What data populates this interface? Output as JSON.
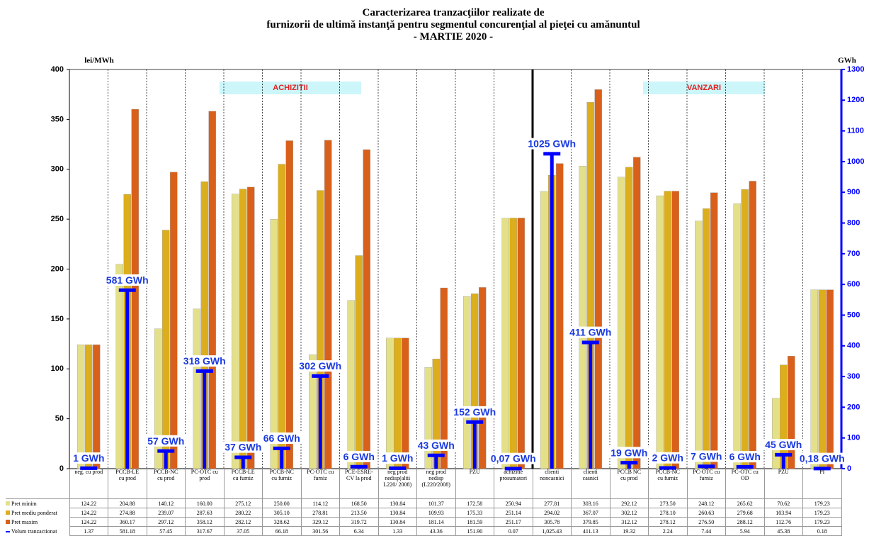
{
  "chart_data": {
    "type": "bar",
    "title": "Caracterizarea tranzacţiilor realizate de\nfurnizorii de ultimă instanţă pentru segmentul concurenţial al pieţei cu amănuntul\n- MARTIE 2020 -",
    "y_label": "lei/MWh",
    "y2_label": "GWh",
    "annotations": [
      "ACHIZITII",
      "VANZARI"
    ],
    "categories": [
      "neg. cu prod",
      "PCCB-LE\ncu prod",
      "PCCB-NC\ncu prod",
      "PC-OTC cu\nprod",
      "PCCB-LE\ncu furniz",
      "PCCB-NC\ncu furniz",
      "PC-OTC cu\nfurniz",
      "PCE-ESRE-\nCV la prod",
      "neg prod\nnedisp(altii\nL220/ 2008)",
      "neg prod\nnedisp\n(L220/2008)",
      "PZU",
      "achizitie\nprosumatori",
      "clienti\nnoncasnici",
      "clienti\ncasnici",
      "PCCB NC\ncu prod",
      "PCCB-NC\ncu furniz",
      "PC-OTC cu\nfurniz",
      "PC-OTC cu\nOD",
      "PZU",
      "PI"
    ],
    "series": [
      {
        "name": "Pret minim",
        "color": "#e4e08a",
        "values": [
          124.22,
          204.88,
          140.12,
          160.0,
          275.12,
          250.0,
          114.12,
          168.5,
          130.84,
          101.37,
          172.58,
          250.94,
          277.81,
          303.16,
          292.12,
          273.5,
          248.12,
          265.62,
          70.62,
          179.23
        ],
        "value_labels": [
          "124.22",
          "204.88",
          "140.12",
          "160.00",
          "275.12",
          "250.00",
          "114.12",
          "168.50",
          "130.84",
          "101.37",
          "172.58",
          "250.94",
          "277.81",
          "303.16",
          "292.12",
          "273.50",
          "248.12",
          "265.62",
          "70.62",
          "179.23"
        ]
      },
      {
        "name": "Pret mediu ponderat",
        "color": "#dcae1e",
        "values": [
          124.22,
          274.88,
          239.07,
          287.63,
          280.22,
          305.1,
          278.81,
          213.5,
          130.84,
          109.93,
          175.33,
          251.14,
          294.02,
          367.07,
          302.12,
          278.1,
          260.63,
          279.68,
          103.94,
          179.23
        ],
        "value_labels": [
          "124.22",
          "274.88",
          "239.07",
          "287.63",
          "280.22",
          "305.10",
          "278.81",
          "213.50",
          "130.84",
          "109.93",
          "175.33",
          "251.14",
          "294.02",
          "367.07",
          "302.12",
          "278.10",
          "260.63",
          "279.68",
          "103.94",
          "179.23"
        ]
      },
      {
        "name": "Pret maxim",
        "color": "#d9601a",
        "values": [
          124.22,
          360.17,
          297.12,
          358.12,
          282.12,
          328.62,
          329.12,
          319.72,
          130.84,
          181.14,
          181.59,
          251.17,
          305.78,
          379.85,
          312.12,
          278.12,
          276.5,
          288.12,
          112.76,
          179.23
        ],
        "value_labels": [
          "124.22",
          "360.17",
          "297.12",
          "358.12",
          "282.12",
          "328.62",
          "329.12",
          "319.72",
          "130.84",
          "181.14",
          "181.59",
          "251.17",
          "305.78",
          "379.85",
          "312.12",
          "278.12",
          "276.50",
          "288.12",
          "112.76",
          "179.23"
        ]
      },
      {
        "name": "Volum tranzactionat",
        "color": "#0000ff",
        "axis": "y2",
        "values": [
          1.37,
          581.18,
          57.45,
          317.67,
          37.05,
          66.18,
          301.56,
          6.34,
          1.33,
          43.36,
          151.9,
          0.07,
          1025.43,
          411.13,
          19.32,
          2.24,
          7.44,
          5.94,
          45.38,
          0.18
        ],
        "value_labels": [
          "1 GWh",
          "581 GWh",
          "57 GWh",
          "318 GWh",
          "37 GWh",
          "66 GWh",
          "302 GWh",
          "6 GWh",
          "1 GWh",
          "43 GWh",
          "152 GWh",
          "0,07 GWh",
          "1025 GWh",
          "411 GWh",
          "19 GWh",
          "2 GWh",
          "7 GWh",
          "6 GWh",
          "45 GWh",
          "0,18 GWh"
        ],
        "table_labels": [
          "1.37",
          "581.18",
          "57.45",
          "317.67",
          "37.05",
          "66.18",
          "301.56",
          "6.34",
          "1.33",
          "43.36",
          "151.90",
          "0.07",
          "1,025.43",
          "411.13",
          "19.32",
          "2.24",
          "7.44",
          "5.94",
          "45.38",
          "0.18"
        ]
      }
    ],
    "ylim": [
      0,
      400
    ],
    "yticks": [
      0,
      50,
      100,
      150,
      200,
      250,
      300,
      350,
      400
    ],
    "y2lim": [
      0,
      1300
    ],
    "y2ticks": [
      0,
      100,
      200,
      300,
      400,
      500,
      600,
      700,
      800,
      900,
      1000,
      1100,
      1200,
      1300
    ]
  }
}
